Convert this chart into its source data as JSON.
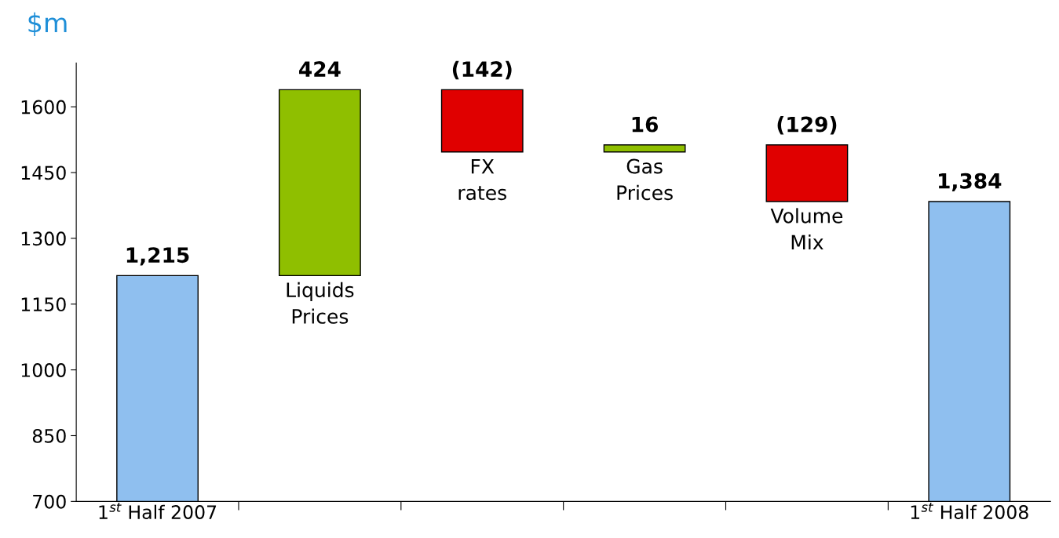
{
  "chart_data": {
    "type": "bar",
    "title": "$m",
    "categories": [
      "1$^{st}$ Half 2007",
      "Liquids\nPrices",
      "FX\nrates",
      "Gas\nPrices",
      "Volume\nMix",
      "1$^{st}$ Half 2008"
    ],
    "values": [
      1215,
      424,
      -142,
      16,
      -129,
      1384
    ],
    "base": [
      0,
      1215,
      1639,
      1497,
      1513,
      0
    ],
    "colors": [
      "#8fbfef",
      "#8fbf00",
      "#e00000",
      "#8fbf00",
      "#e00000",
      "#8fbfef"
    ],
    "value_labels": [
      "1,215",
      "424",
      "(142)",
      "16",
      "(129)",
      "1,384"
    ],
    "ylim": [
      700,
      1700
    ],
    "yticks": [
      700,
      850,
      1000,
      1150,
      1300,
      1450,
      1600
    ],
    "grid": false,
    "legend": false
  }
}
